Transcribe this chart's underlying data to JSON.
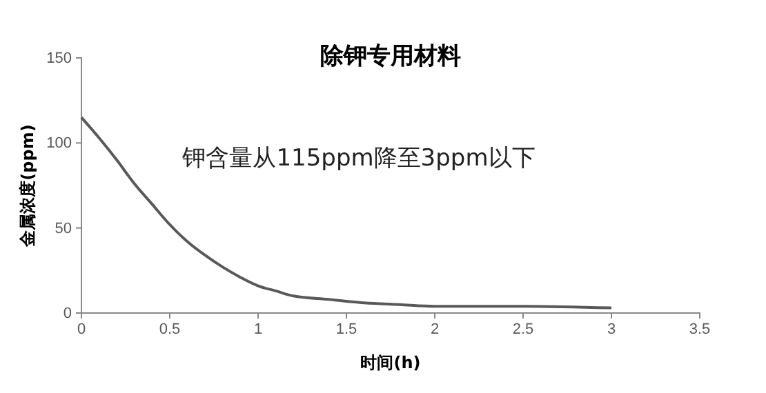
{
  "chart_data": {
    "type": "line",
    "title": "除钾专用材料",
    "xlabel": "时间(h)",
    "ylabel": "金属浓度(ppm)",
    "annotations": [
      "钾含量从115ppm降至3ppm以下"
    ],
    "x": [
      0,
      0.1,
      0.2,
      0.3,
      0.4,
      0.5,
      0.6,
      0.7,
      0.8,
      0.9,
      1.0,
      1.1,
      1.2,
      1.4,
      1.6,
      1.8,
      2.0,
      2.5,
      3.0
    ],
    "series": [
      {
        "color": "#595959",
        "values": [
          115,
          103,
          90,
          76,
          64,
          52,
          42,
          34,
          27,
          21,
          16,
          13,
          10,
          8,
          6,
          5,
          4,
          4,
          3
        ]
      }
    ],
    "xlim": [
      0,
      3.5
    ],
    "xticks": [
      0,
      0.5,
      1,
      1.5,
      2,
      2.5,
      3,
      3.5
    ],
    "ylim": [
      0,
      150
    ],
    "yticks": [
      0,
      50,
      100,
      150
    ],
    "grid": false,
    "marker": "none",
    "line_style": "solid"
  }
}
